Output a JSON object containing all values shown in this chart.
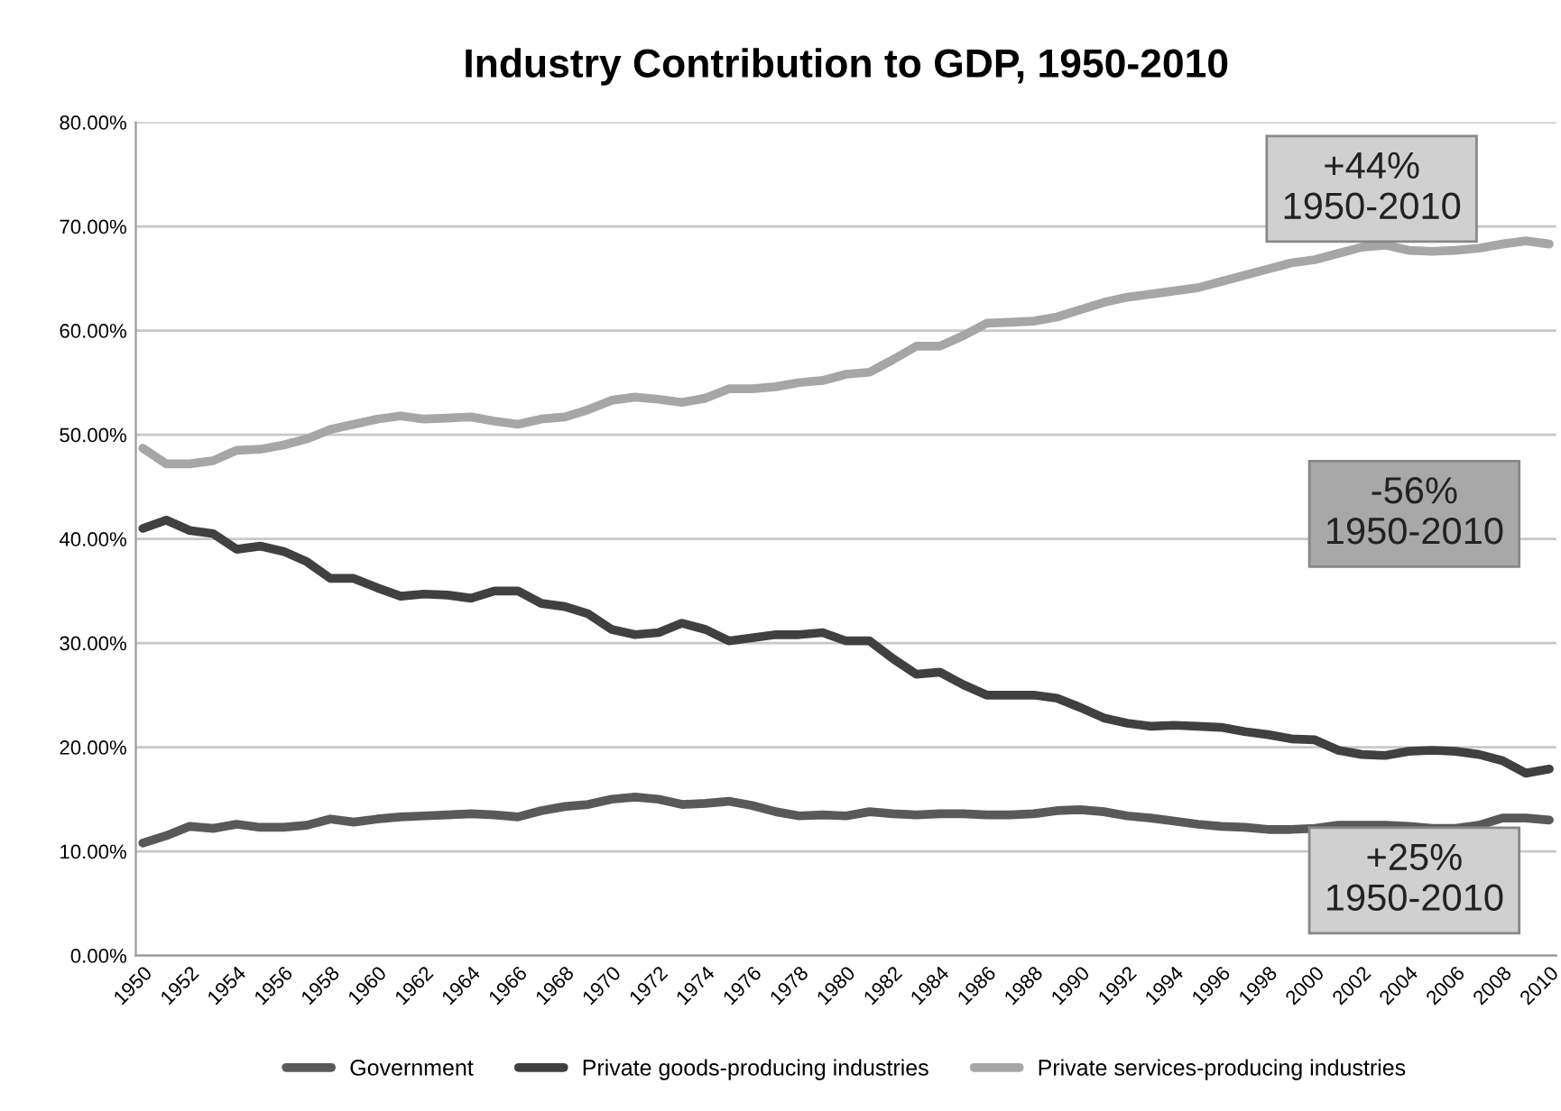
{
  "chart_data": {
    "type": "line",
    "title": "Industry Contribution to GDP, 1950-2010",
    "categories": [
      "1950",
      null,
      "1952",
      null,
      "1954",
      null,
      "1956",
      null,
      "1958",
      null,
      "1960",
      null,
      "1962",
      null,
      "1964",
      null,
      "1966",
      null,
      "1968",
      null,
      "1970",
      null,
      "1972",
      null,
      "1974",
      null,
      "1976",
      null,
      "1978",
      null,
      "1980",
      null,
      "1982",
      null,
      "1984",
      null,
      "1986",
      null,
      "1988",
      null,
      "1990",
      null,
      "1992",
      null,
      "1994",
      null,
      "1996",
      null,
      "1998",
      null,
      "2000",
      null,
      "2002",
      null,
      "2004",
      null,
      "2006",
      null,
      "2008",
      null,
      "2010"
    ],
    "series": [
      {
        "name": "Government",
        "color": "#595959",
        "values": [
          10.8,
          11.5,
          12.4,
          12.2,
          12.6,
          12.3,
          12.3,
          12.5,
          13.1,
          12.8,
          13.1,
          13.3,
          13.4,
          13.5,
          13.6,
          13.5,
          13.3,
          13.9,
          14.3,
          14.5,
          15,
          15.2,
          15,
          14.5,
          14.6,
          14.8,
          14.4,
          13.8,
          13.4,
          13.5,
          13.4,
          13.8,
          13.6,
          13.5,
          13.6,
          13.6,
          13.5,
          13.5,
          13.6,
          13.9,
          14,
          13.8,
          13.4,
          13.2,
          12.9,
          12.6,
          12.4,
          12.3,
          12.1,
          12.1,
          12.2,
          12.5,
          12.5,
          12.5,
          12.4,
          12.2,
          12.2,
          12.5,
          13.2,
          13.2,
          13
        ]
      },
      {
        "name": "Private goods-producing industries",
        "color": "#404040",
        "values": [
          41,
          41.8,
          40.8,
          40.5,
          39,
          39.3,
          38.8,
          37.8,
          36.2,
          36.2,
          35.3,
          34.5,
          34.7,
          34.6,
          34.3,
          35,
          35,
          33.8,
          33.5,
          32.8,
          31.3,
          30.8,
          31,
          31.9,
          31.3,
          30.2,
          30.5,
          30.8,
          30.8,
          31,
          30.2,
          30.2,
          28.5,
          27,
          27.2,
          26,
          25,
          25,
          25,
          24.7,
          23.8,
          22.8,
          22.3,
          22,
          22.1,
          22,
          21.9,
          21.5,
          21.2,
          20.8,
          20.7,
          19.7,
          19.3,
          19.2,
          19.6,
          19.7,
          19.6,
          19.3,
          18.7,
          17.5,
          17.9
        ]
      },
      {
        "name": "Private services-producing industries",
        "color": "#a6a6a6",
        "values": [
          48.7,
          47.2,
          47.2,
          47.5,
          48.5,
          48.6,
          49,
          49.6,
          50.5,
          51,
          51.5,
          51.8,
          51.5,
          51.6,
          51.7,
          51.3,
          51,
          51.5,
          51.7,
          52.4,
          53.3,
          53.6,
          53.4,
          53.1,
          53.5,
          54.4,
          54.4,
          54.6,
          55,
          55.2,
          55.8,
          56,
          57.2,
          58.5,
          58.5,
          59.5,
          60.7,
          60.8,
          60.9,
          61.3,
          62,
          62.7,
          63.2,
          63.5,
          63.8,
          64.1,
          64.7,
          65.3,
          65.9,
          66.5,
          66.8,
          67.4,
          68,
          68.2,
          67.7,
          67.6,
          67.7,
          67.9,
          68.3,
          68.6,
          68.3
        ]
      }
    ],
    "ylim": [
      0,
      80
    ],
    "yticks": [
      {
        "value": 0,
        "label": "0.00%"
      },
      {
        "value": 10,
        "label": "10.00%"
      },
      {
        "value": 20,
        "label": "20.00%"
      },
      {
        "value": 30,
        "label": "30.00%"
      },
      {
        "value": 40,
        "label": "40.00%"
      },
      {
        "value": 50,
        "label": "50.00%"
      },
      {
        "value": 60,
        "label": "60.00%"
      },
      {
        "value": 70,
        "label": "70.00%"
      },
      {
        "value": 80,
        "label": "80.00%"
      }
    ],
    "annotations": [
      "+44%\n1950-2010",
      "-56%\n1950-2010",
      "+25%\n1950-2010"
    ],
    "grid": "y",
    "legend": "bottom",
    "marker": "none",
    "line_style": "solid"
  }
}
